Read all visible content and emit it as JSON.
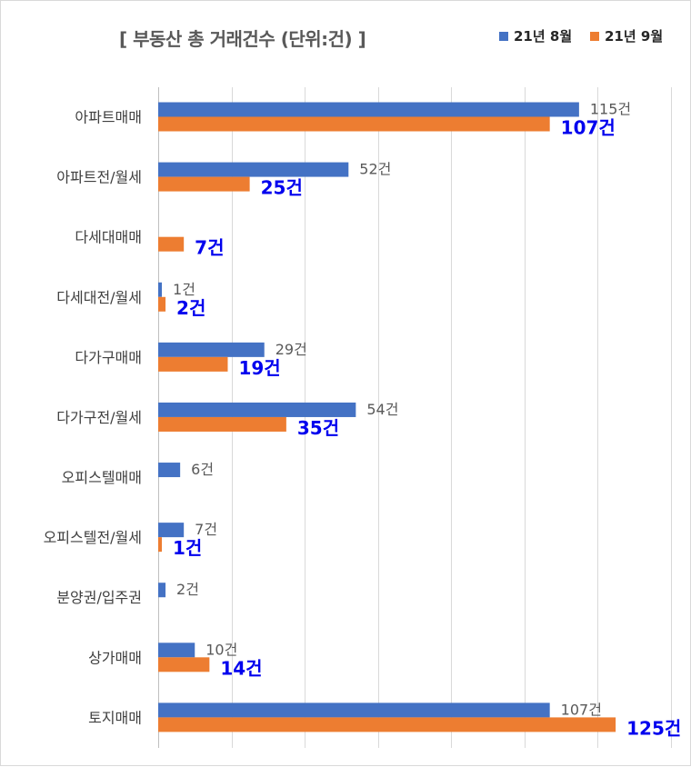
{
  "chart_data": {
    "type": "bar",
    "orientation": "horizontal",
    "title": "[ 부동산 총 거래건수 (단위:건) ]",
    "categories": [
      "아파트매매",
      "아파트전/월세",
      "다세대매매",
      "다세대전/월세",
      "다가구매매",
      "다가구전/월세",
      "오피스텔매매",
      "오피스텔전/월세",
      "분양권/입주권",
      "상가매매",
      "토지매매"
    ],
    "series": [
      {
        "name": "21년 8월",
        "color": "#4472c4",
        "values": [
          115,
          52,
          null,
          1,
          29,
          54,
          6,
          7,
          2,
          10,
          107
        ],
        "labels": [
          "115건",
          "52건",
          "",
          "1건",
          "29건",
          "54건",
          "6건",
          "7건",
          "2건",
          "10건",
          "107건"
        ]
      },
      {
        "name": "21년 9월",
        "color": "#ed7d31",
        "values": [
          107,
          25,
          7,
          2,
          19,
          35,
          null,
          1,
          null,
          14,
          125
        ],
        "labels": [
          "107건",
          "25건",
          "7건",
          "2건",
          "19건",
          "35건",
          "",
          "1건",
          "",
          "14건",
          "125건"
        ]
      }
    ],
    "xlim": [
      0,
      140
    ],
    "x_gridline_step": 20,
    "grid": true,
    "legend_position": "top-right"
  }
}
